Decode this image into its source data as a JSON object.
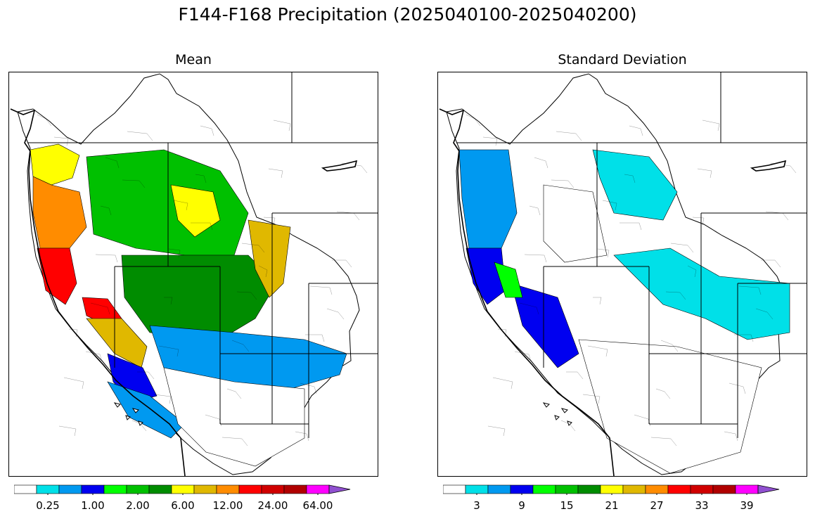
{
  "title": "F144-F168 Precipitation (2025040100-2025040200)",
  "palette": [
    "#ffffff",
    "#00e0e8",
    "#0099f0",
    "#0000f0",
    "#00ff00",
    "#00c000",
    "#008c00",
    "#ffff00",
    "#e0b800",
    "#ff8c00",
    "#ff0000",
    "#d00000",
    "#b00000",
    "#ff00ff",
    "#9050d0"
  ],
  "chart_data": [
    {
      "type": "heatmap",
      "subtitle": "Mean",
      "colorbar": {
        "tick_labels": [
          "0.25",
          "1.00",
          "2.00",
          "6.00",
          "12.00",
          "24.00",
          "64.00"
        ],
        "tick_bins": [
          1,
          3,
          5,
          7,
          9,
          11,
          13
        ],
        "extend": "max"
      },
      "regions": [
        {
          "region": "Washington coast / Olympics",
          "color_index": 7
        },
        {
          "region": "Oregon coast",
          "color_index": 9
        },
        {
          "region": "NW California coast",
          "color_index": 10
        },
        {
          "region": "Northern Sierra",
          "color_index": 10
        },
        {
          "region": "Central Sierra",
          "color_index": 8
        },
        {
          "region": "Southern Sierra",
          "color_index": 3
        },
        {
          "region": "Idaho / Montana interior",
          "color_index": 5
        },
        {
          "region": "Central Idaho",
          "color_index": 7
        },
        {
          "region": "Wyoming / Utah north",
          "color_index": 6
        },
        {
          "region": "Colorado Front Range",
          "color_index": 8
        },
        {
          "region": "Southern Utah / Colorado",
          "color_index": 2
        },
        {
          "region": "Southern California coast",
          "color_index": 2
        },
        {
          "region": "Arizona / New Mexico",
          "color_index": 0
        }
      ]
    },
    {
      "type": "heatmap",
      "subtitle": "Standard Deviation",
      "colorbar": {
        "tick_labels": [
          "3",
          "9",
          "15",
          "21",
          "27",
          "33",
          "39"
        ],
        "tick_bins": [
          1,
          3,
          5,
          7,
          9,
          11,
          13
        ],
        "extend": "max"
      },
      "regions": [
        {
          "region": "Washington / Oregon coast",
          "color_index": 2
        },
        {
          "region": "NW California coast",
          "color_index": 3
        },
        {
          "region": "Sierra Nevada",
          "color_index": 3
        },
        {
          "region": "Northern Sierra",
          "color_index": 4
        },
        {
          "region": "Montana east",
          "color_index": 1
        },
        {
          "region": "Colorado / Wyoming",
          "color_index": 1
        },
        {
          "region": "Interior basins",
          "color_index": 0
        },
        {
          "region": "Arizona / New Mexico",
          "color_index": 0
        }
      ]
    }
  ]
}
